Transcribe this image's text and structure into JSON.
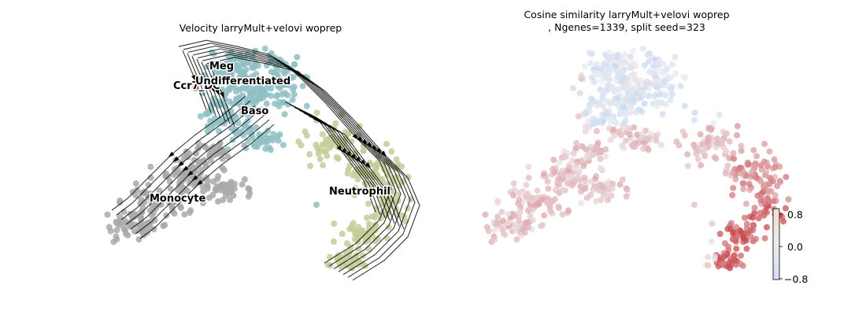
{
  "chart_data": [
    {
      "type": "scatter",
      "title": "Velocity larryMult+velovi woprep",
      "xlabel": "",
      "ylabel": "",
      "axes_visible": false,
      "overlay": "velocity streamlines with arrowheads",
      "series": [
        {
          "name": "Undifferentiated",
          "color": "#8fbfc4"
        },
        {
          "name": "Monocyte",
          "color": "#a9a9a9"
        },
        {
          "name": "Neutrophil",
          "color": "#c5cc9a"
        },
        {
          "name": "Meg",
          "color": "#8fbfc4"
        },
        {
          "name": "Baso",
          "color": "#8fbfc4"
        },
        {
          "name": "Ccr7_DC",
          "color": "#d98b4f"
        }
      ],
      "cluster_labels": [
        "Meg",
        "Ccr7_DC",
        "Undifferentiated",
        "Baso",
        "Monocyte",
        "Neutrophil"
      ]
    },
    {
      "type": "scatter",
      "title_line1": "Cosine similarity larryMult+velovi woprep",
      "title_line2": ", Ngenes=1339, split seed=323",
      "xlabel": "",
      "ylabel": "",
      "axes_visible": false,
      "colormap": "coolwarm",
      "colorbar": {
        "ticks": [
          "0.8",
          "0.0",
          "−0.8"
        ],
        "min": -0.8,
        "max": 0.8
      }
    }
  ]
}
